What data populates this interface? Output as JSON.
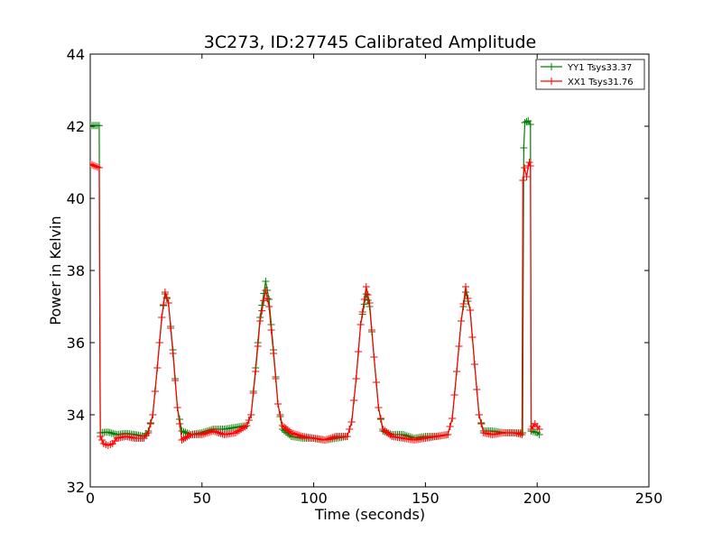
{
  "chart_data": {
    "type": "line",
    "title": "3C273, ID:27745 Calibrated Amplitude",
    "xlabel": "Time (seconds)",
    "ylabel": "Power in Kelvin",
    "xlim": [
      0,
      250
    ],
    "ylim": [
      32,
      44
    ],
    "xticks": [
      0,
      50,
      100,
      150,
      200,
      250
    ],
    "yticks": [
      32,
      34,
      36,
      38,
      40,
      42,
      44
    ],
    "grid": false,
    "legend_position": "top-right",
    "marker": "+",
    "series": [
      {
        "name": "YY1 Tsys33.37",
        "color": "#008000",
        "points": [
          [
            0,
            42.02
          ],
          [
            4.0,
            42.02
          ],
          [
            4.5,
            33.5
          ],
          [
            8,
            33.52
          ],
          [
            12,
            33.45
          ],
          [
            16,
            33.48
          ],
          [
            20,
            33.45
          ],
          [
            24,
            33.4
          ],
          [
            26,
            33.55
          ],
          [
            28,
            34.0
          ],
          [
            30,
            35.3
          ],
          [
            32,
            36.7
          ],
          [
            33.5,
            37.35
          ],
          [
            35,
            37.1
          ],
          [
            37,
            35.8
          ],
          [
            39,
            34.2
          ],
          [
            41,
            33.55
          ],
          [
            45,
            33.45
          ],
          [
            50,
            33.5
          ],
          [
            55,
            33.6
          ],
          [
            60,
            33.6
          ],
          [
            65,
            33.65
          ],
          [
            70,
            33.7
          ],
          [
            72,
            34.0
          ],
          [
            74,
            35.3
          ],
          [
            76,
            36.7
          ],
          [
            78.5,
            37.7
          ],
          [
            80,
            37.2
          ],
          [
            82,
            35.8
          ],
          [
            84,
            34.3
          ],
          [
            86,
            33.6
          ],
          [
            90,
            33.4
          ],
          [
            95,
            33.35
          ],
          [
            100,
            33.35
          ],
          [
            105,
            33.3
          ],
          [
            110,
            33.35
          ],
          [
            115,
            33.4
          ],
          [
            117,
            33.8
          ],
          [
            119,
            35.0
          ],
          [
            121,
            36.5
          ],
          [
            123.5,
            37.35
          ],
          [
            125,
            37.0
          ],
          [
            127,
            35.6
          ],
          [
            129,
            34.2
          ],
          [
            131,
            33.55
          ],
          [
            135,
            33.45
          ],
          [
            140,
            33.45
          ],
          [
            145,
            33.35
          ],
          [
            150,
            33.4
          ],
          [
            155,
            33.4
          ],
          [
            160,
            33.45
          ],
          [
            162,
            33.9
          ],
          [
            164,
            35.2
          ],
          [
            166,
            36.6
          ],
          [
            168,
            37.4
          ],
          [
            170,
            36.9
          ],
          [
            172,
            35.4
          ],
          [
            174,
            34.0
          ],
          [
            176,
            33.55
          ],
          [
            180,
            33.55
          ],
          [
            185,
            33.5
          ],
          [
            190,
            33.5
          ],
          [
            193.5,
            33.5
          ],
          [
            194,
            41.4
          ],
          [
            194.5,
            42.1
          ],
          [
            196,
            42.15
          ],
          [
            197,
            42.05
          ],
          [
            197.3,
            33.55
          ],
          [
            200,
            33.5
          ],
          [
            201,
            33.45
          ]
        ]
      },
      {
        "name": "XX1 Tsys31.76",
        "color": "#ff0000",
        "points": [
          [
            0,
            40.95
          ],
          [
            4.0,
            40.85
          ],
          [
            4.5,
            33.4
          ],
          [
            6,
            33.2
          ],
          [
            8,
            33.15
          ],
          [
            10,
            33.2
          ],
          [
            12,
            33.35
          ],
          [
            16,
            33.4
          ],
          [
            20,
            33.35
          ],
          [
            24,
            33.35
          ],
          [
            26,
            33.5
          ],
          [
            28,
            34.0
          ],
          [
            30,
            35.3
          ],
          [
            32,
            36.7
          ],
          [
            33.5,
            37.4
          ],
          [
            35,
            37.1
          ],
          [
            37,
            35.7
          ],
          [
            39,
            34.2
          ],
          [
            41,
            33.3
          ],
          [
            45,
            33.45
          ],
          [
            50,
            33.45
          ],
          [
            55,
            33.55
          ],
          [
            60,
            33.45
          ],
          [
            65,
            33.5
          ],
          [
            70,
            33.7
          ],
          [
            72,
            34.0
          ],
          [
            74,
            35.2
          ],
          [
            76,
            36.6
          ],
          [
            78.5,
            37.45
          ],
          [
            80,
            37.0
          ],
          [
            82,
            35.7
          ],
          [
            84,
            34.3
          ],
          [
            86,
            33.7
          ],
          [
            90,
            33.5
          ],
          [
            95,
            33.4
          ],
          [
            100,
            33.35
          ],
          [
            105,
            33.3
          ],
          [
            110,
            33.4
          ],
          [
            115,
            33.4
          ],
          [
            117,
            33.8
          ],
          [
            119,
            35.0
          ],
          [
            121,
            36.5
          ],
          [
            123.5,
            37.55
          ],
          [
            125,
            37.1
          ],
          [
            127,
            35.6
          ],
          [
            129,
            34.2
          ],
          [
            131,
            33.6
          ],
          [
            135,
            33.4
          ],
          [
            140,
            33.35
          ],
          [
            145,
            33.3
          ],
          [
            150,
            33.35
          ],
          [
            155,
            33.4
          ],
          [
            160,
            33.45
          ],
          [
            162,
            33.9
          ],
          [
            164,
            35.2
          ],
          [
            166,
            36.6
          ],
          [
            168,
            37.55
          ],
          [
            170,
            36.9
          ],
          [
            172,
            35.4
          ],
          [
            174,
            34.0
          ],
          [
            176,
            33.5
          ],
          [
            180,
            33.45
          ],
          [
            185,
            33.5
          ],
          [
            190,
            33.5
          ],
          [
            193.2,
            33.45
          ],
          [
            193.6,
            40.5
          ],
          [
            194.3,
            40.85
          ],
          [
            195.3,
            40.6
          ],
          [
            196,
            40.9
          ],
          [
            196.5,
            41.0
          ],
          [
            197,
            40.9
          ],
          [
            197.3,
            33.6
          ],
          [
            199,
            33.75
          ],
          [
            201,
            33.6
          ]
        ]
      }
    ]
  }
}
